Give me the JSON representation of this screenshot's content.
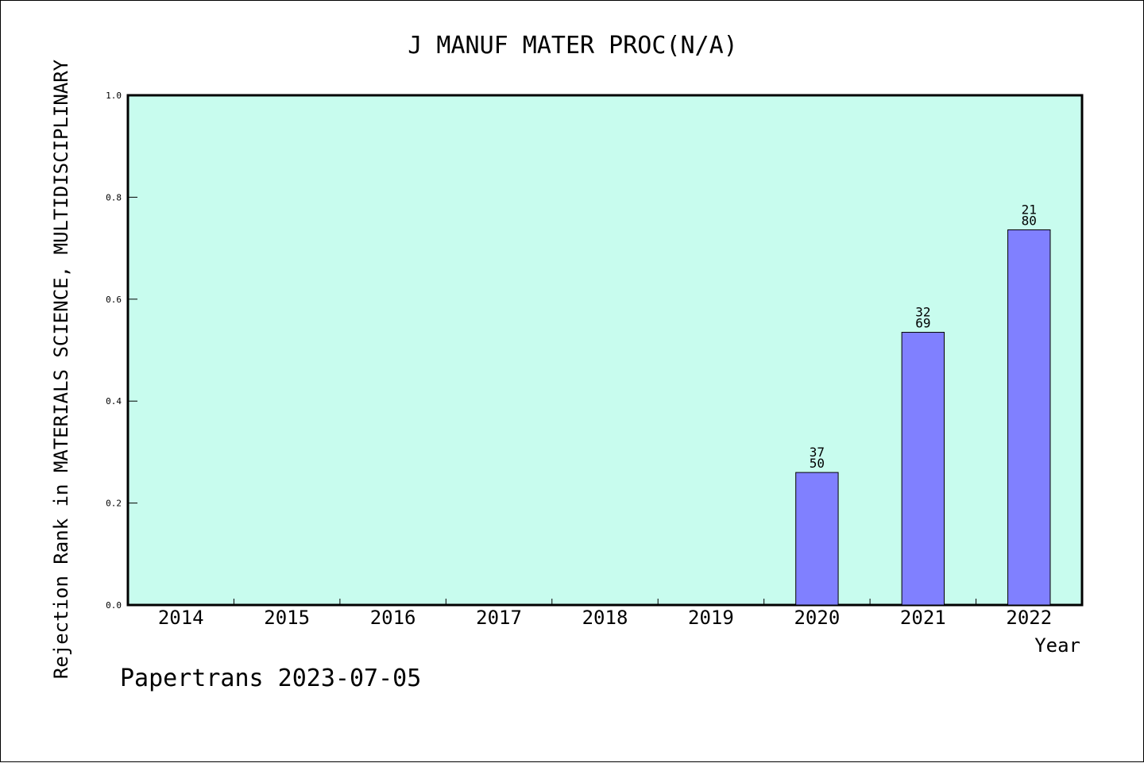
{
  "chart_data": {
    "type": "bar",
    "title": "J MANUF MATER PROC(N/A)",
    "xlabel": "Year",
    "ylabel": "Rejection Rank in MATERIALS SCIENCE, MULTIDISCIPLINARY",
    "categories": [
      "2014",
      "2015",
      "2016",
      "2017",
      "2018",
      "2019",
      "2020",
      "2021",
      "2022"
    ],
    "values": [
      null,
      null,
      null,
      null,
      null,
      null,
      0.26,
      0.535,
      0.736
    ],
    "bar_labels": [
      null,
      null,
      null,
      null,
      null,
      null,
      [
        "37",
        "50"
      ],
      [
        "32",
        "69"
      ],
      [
        "21",
        "80"
      ]
    ],
    "ylim": [
      0,
      1.0
    ],
    "yticks": [
      "0.0",
      "0.2",
      "0.4",
      "0.6",
      "0.8",
      "1.0"
    ],
    "grid": false,
    "colors": {
      "plot_background": "#c8fcee",
      "bar_fill": "#8080ff",
      "bar_stroke": "#000000"
    }
  },
  "footer": {
    "watermark": "Papertrans 2023-07-05"
  }
}
